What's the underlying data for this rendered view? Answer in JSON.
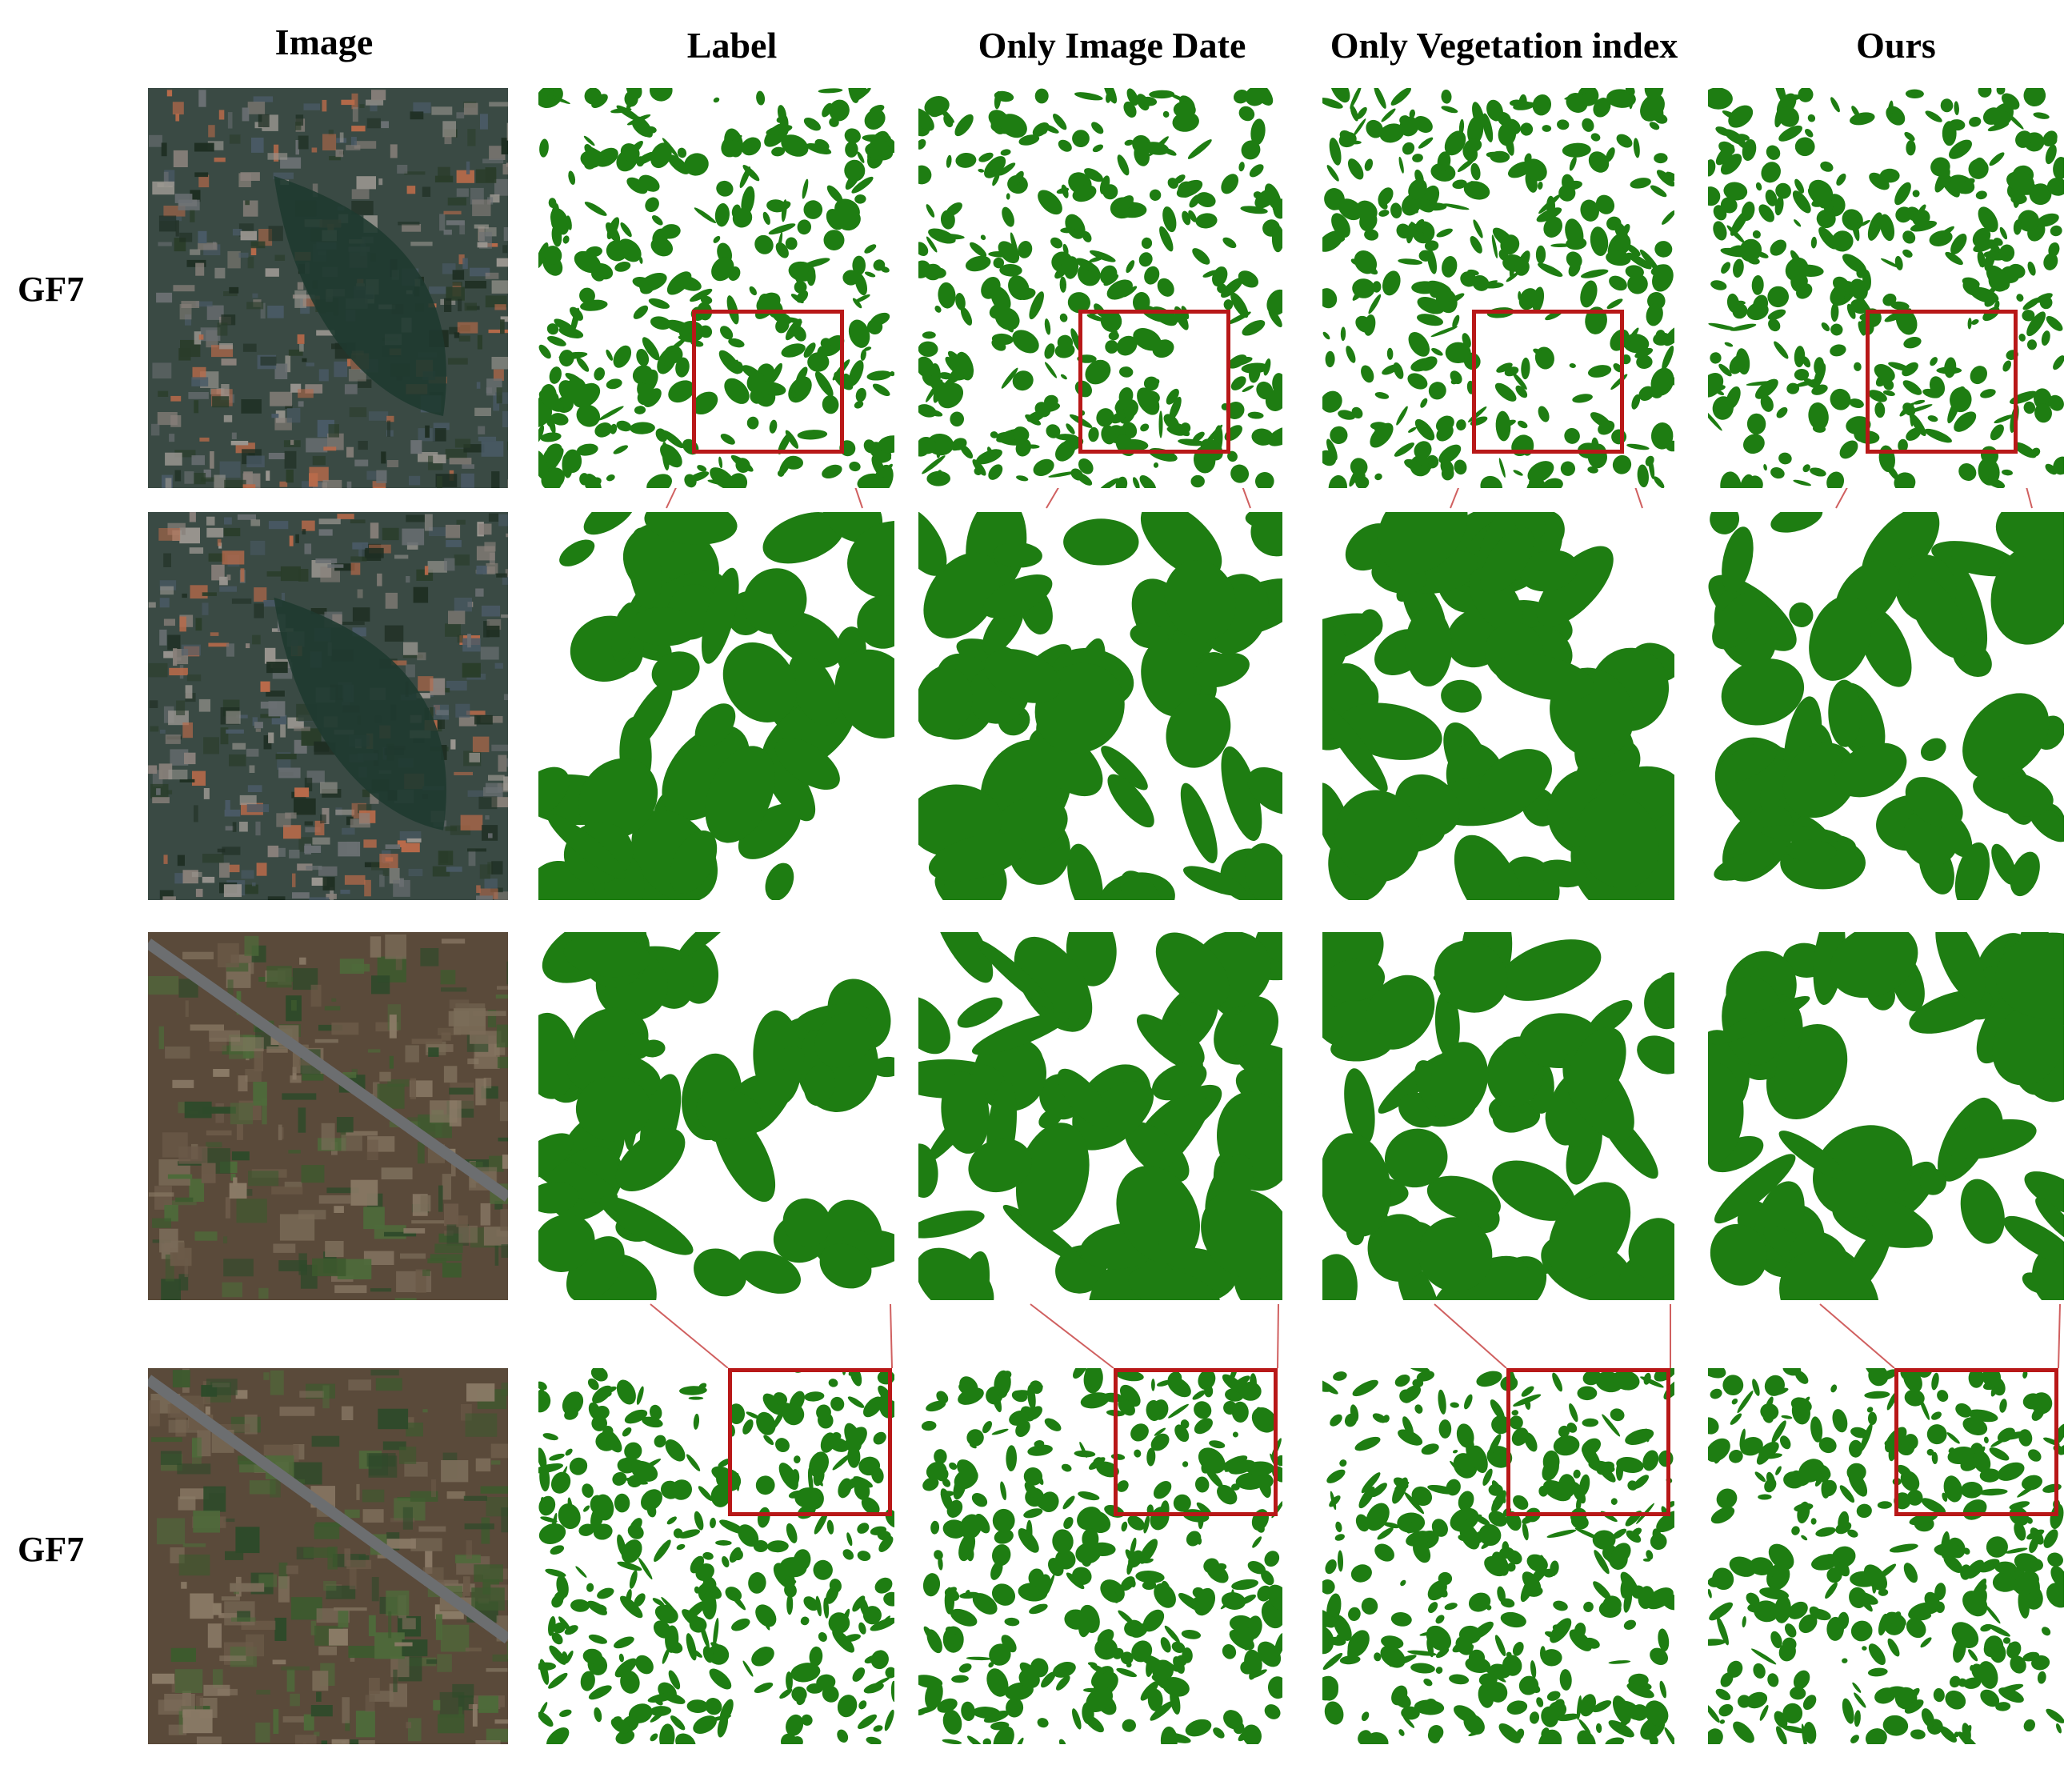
{
  "column_headers": [
    "Image",
    "Label",
    "Only Image Date",
    "Only Vegetation index",
    "Ours"
  ],
  "row_labels": [
    "GF7",
    "",
    "",
    "GF7"
  ],
  "colors": {
    "vegetation": "#1e7d12",
    "background": "#ffffff",
    "zoom_box": "#b81818",
    "connector": "#d06060"
  },
  "rows": [
    {
      "scene": "urban-park-with-lake",
      "zoomed_in": false,
      "has_zoom_box": true
    },
    {
      "scene": "urban-park-with-lake",
      "zoomed_in": true,
      "has_zoom_box": false
    },
    {
      "scene": "rural-highway",
      "zoomed_in": true,
      "has_zoom_box": false
    },
    {
      "scene": "rural-highway",
      "zoomed_in": false,
      "has_zoom_box": true
    }
  ]
}
